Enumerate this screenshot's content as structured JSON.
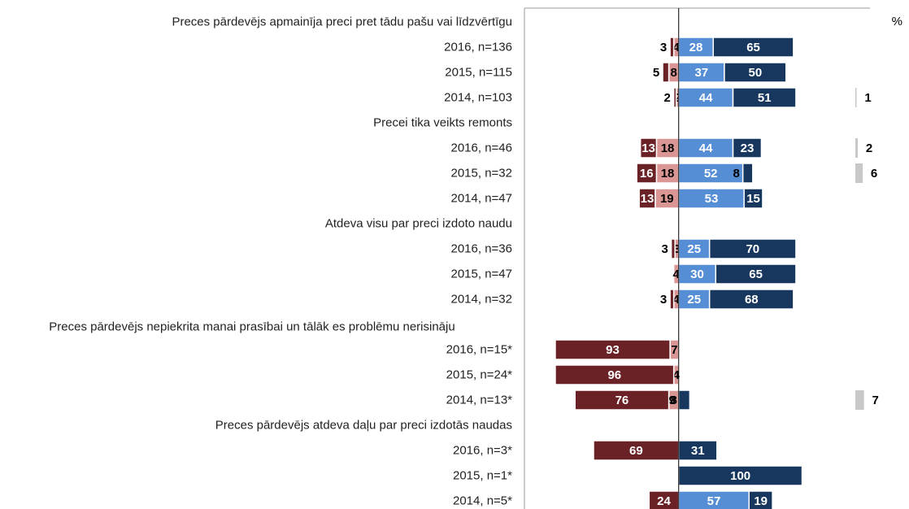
{
  "chart_data": {
    "type": "diverging-bar",
    "unit": "%",
    "categories": [
      "Preces pārdevējs apmainīja preci pret tādu pašu vai līdzvērtīgu",
      "2016, n=136",
      "2015, n=115",
      "2014, n=103",
      "Precei tika veikts remonts",
      "2016, n=46",
      "2015, n=32",
      "2014, n=47",
      "Atdeva visu par preci izdoto naudu",
      "2016, n=36",
      "2015, n=47",
      "2014, n=32",
      "Preces pārdevējs nepiekrita manai prasībai un tālāk es problēmu nerisināju",
      "2016, n=15*",
      "2015, n=24*",
      "2014, n=13*",
      "Preces pārdevējs atdeva daļu par preci izdotās naudas",
      "2016, n=3*",
      "2015, n=1*",
      "2014, n=5*"
    ],
    "series": [
      {
        "color": "#6b2226",
        "side": "negative",
        "values": [
          null,
          3,
          5,
          2,
          null,
          13,
          16,
          13,
          null,
          3,
          null,
          3,
          null,
          93,
          96,
          76,
          null,
          69,
          null,
          24
        ]
      },
      {
        "color": "#d99694",
        "side": "negative",
        "values": [
          null,
          4,
          8,
          2,
          null,
          18,
          18,
          19,
          null,
          3,
          4,
          4,
          null,
          7,
          4,
          8,
          null,
          null,
          null,
          null
        ]
      },
      {
        "color": "#558ed5",
        "side": "positive",
        "values": [
          null,
          28,
          37,
          44,
          null,
          44,
          52,
          53,
          null,
          25,
          30,
          25,
          null,
          null,
          null,
          null,
          null,
          null,
          null,
          57
        ]
      },
      {
        "color": "#17375e",
        "side": "positive",
        "values": [
          null,
          65,
          50,
          51,
          null,
          23,
          8,
          15,
          null,
          70,
          65,
          68,
          null,
          null,
          null,
          9,
          null,
          31,
          100,
          19
        ]
      },
      {
        "color": "#c8c8c8",
        "side": "separate",
        "values": [
          null,
          null,
          null,
          1,
          null,
          2,
          6,
          null,
          null,
          null,
          null,
          null,
          null,
          null,
          null,
          7,
          null,
          null,
          null,
          null
        ]
      }
    ],
    "xlim": [
      -125,
      155
    ]
  }
}
